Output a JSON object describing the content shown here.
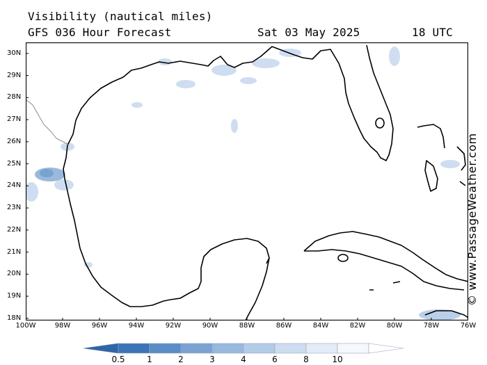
{
  "header": {
    "title": "Visibility (nautical miles)",
    "model": "GFS 036 Hour Forecast",
    "date": "Sat 03 May 2025",
    "time": "18 UTC"
  },
  "watermark": "© www.PassageWeather.com",
  "map": {
    "lon_labels": [
      "100W",
      "98W",
      "96W",
      "94W",
      "92W",
      "90W",
      "88W",
      "86W",
      "84W",
      "82W",
      "80W",
      "78W",
      "76W"
    ],
    "lat_labels": [
      "30N",
      "29N",
      "28N",
      "27N",
      "26N",
      "25N",
      "24N",
      "23N",
      "22N",
      "21N",
      "20N",
      "19N",
      "18N"
    ],
    "lon_range": [
      -100,
      -76
    ],
    "lat_range": [
      17.9,
      30.5
    ]
  },
  "legend": {
    "tick_labels": [
      "0.5",
      "1",
      "2",
      "3",
      "4",
      "6",
      "8",
      "10"
    ],
    "colors": [
      "#3b74b8",
      "#5a8cc6",
      "#7aa2d3",
      "#98b8dd",
      "#b3cbe7",
      "#cddcef",
      "#e3ebf6",
      "#f5f8fc"
    ]
  }
}
